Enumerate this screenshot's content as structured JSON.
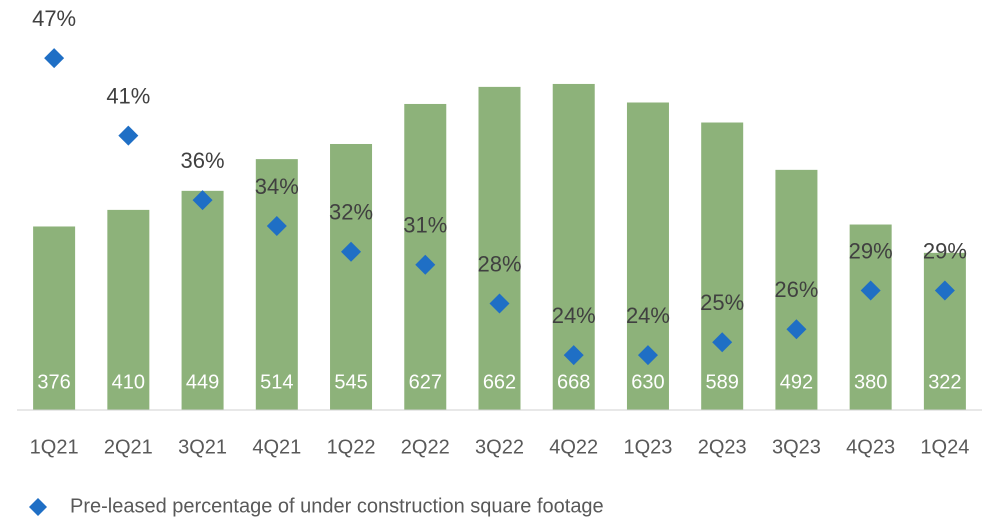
{
  "chart_data": {
    "type": "bar",
    "categories": [
      "1Q21",
      "2Q21",
      "3Q21",
      "4Q21",
      "1Q22",
      "2Q22",
      "3Q22",
      "4Q22",
      "1Q23",
      "2Q23",
      "3Q23",
      "4Q23",
      "1Q24"
    ],
    "series": [
      {
        "type": "bar",
        "color": "#8db27a",
        "values": [
          376,
          410,
          449,
          514,
          545,
          627,
          662,
          668,
          630,
          589,
          492,
          380,
          322
        ]
      },
      {
        "type": "scatter",
        "name": "Pre-leased percentage of under construction square footage",
        "color": "#1f6fc5",
        "axis": "y2",
        "values": [
          47,
          41,
          36,
          34,
          32,
          31,
          28,
          24,
          24,
          25,
          26,
          29,
          29
        ],
        "value_labels": [
          "47%",
          "41%",
          "36%",
          "34%",
          "32%",
          "31%",
          "28%",
          "24%",
          "24%",
          "25%",
          "26%",
          "29%",
          "29%"
        ]
      }
    ],
    "ylim": [
      0,
      840
    ],
    "y2lim": [
      19.75,
      51.5
    ],
    "legend": "bottom-left"
  }
}
